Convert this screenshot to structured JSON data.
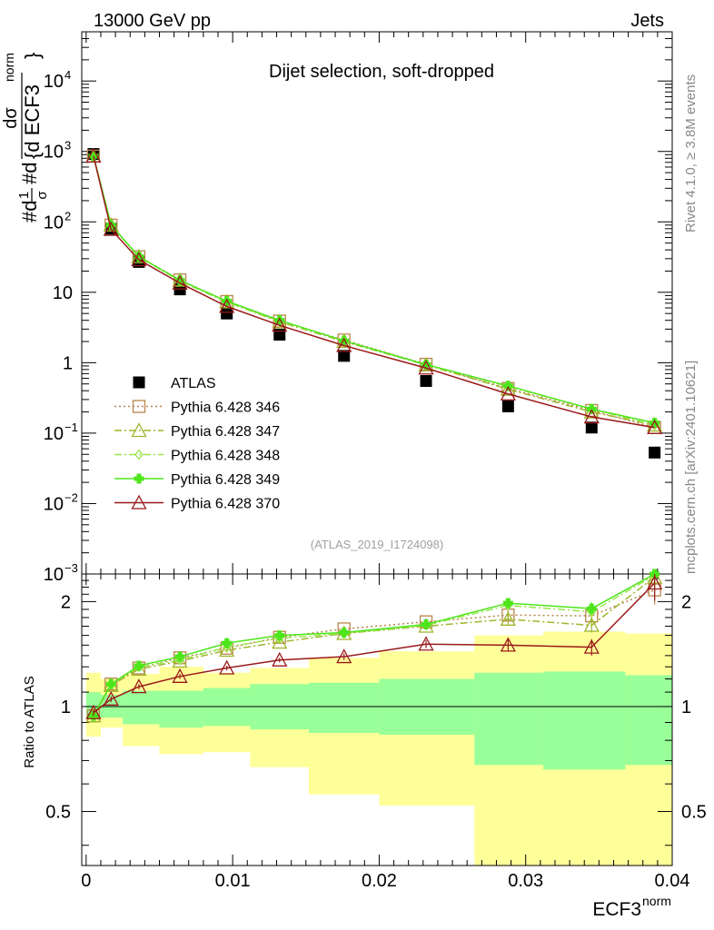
{
  "header": {
    "energy_label": "13000 GeV pp",
    "category_label": "Jets"
  },
  "side_text": {
    "rivet": "Rivet 4.1.0, ≥ 3.8M events",
    "mcplots": "mcplots.cern.ch [arXiv:2401.10621]"
  },
  "colors": {
    "atlas": "#000000",
    "p346": "#b8864b",
    "p347": "#a0b52c",
    "p348": "#99e64d",
    "p349": "#4ce61a",
    "p370": "#99191a",
    "band_yellow": "#ffff99",
    "band_green": "#99ff99"
  },
  "chart_data": [
    {
      "type": "line",
      "title": "Dijet selection, soft-dropped",
      "analysis_id": "(ATLAS_2019_I1724098)",
      "yscale": "log",
      "ylim": [
        0.001,
        50000
      ],
      "xlim": [
        -0.0003,
        0.04
      ],
      "ylabel": {
        "top": "dσ",
        "bottom": "{d ECF3",
        "sup": "norm",
        "close": "}",
        "left": "#d",
        "frac_top": "1",
        "frac_bottom": "σ",
        "mid": "#d"
      },
      "ytick_labels": [
        {
          "v": 0.001,
          "base": "10",
          "exp": "−3"
        },
        {
          "v": 0.01,
          "base": "10",
          "exp": "−2"
        },
        {
          "v": 0.1,
          "base": "10",
          "exp": "−1"
        },
        {
          "v": 1,
          "base": "1",
          "exp": ""
        },
        {
          "v": 10,
          "base": "10",
          "exp": ""
        },
        {
          "v": 100,
          "base": "10",
          "exp": "2"
        },
        {
          "v": 1000,
          "base": "10",
          "exp": "3"
        },
        {
          "v": 10000,
          "base": "10",
          "exp": "4"
        }
      ],
      "x": [
        0.0005,
        0.0017,
        0.0036,
        0.0064,
        0.0096,
        0.0132,
        0.0176,
        0.0232,
        0.0288,
        0.0345,
        0.0388
      ],
      "series": [
        {
          "name": "ATLAS",
          "marker": "square",
          "color": "#000000",
          "values": [
            920,
            80,
            27,
            11,
            5.0,
            2.5,
            1.25,
            0.55,
            0.24,
            0.12,
            0.053
          ]
        },
        {
          "name": "Pythia 6.428 346",
          "marker": "open-square",
          "dash": "dotted",
          "color": "#b8864b",
          "values": [
            860,
            90,
            32,
            15,
            7.4,
            3.9,
            2.1,
            0.95,
            0.43,
            0.21,
            0.12
          ]
        },
        {
          "name": "Pythia 6.428 347",
          "marker": "open-triangle",
          "dash": "dashdot",
          "color": "#a0b52c",
          "values": [
            860,
            90,
            32,
            14.8,
            7.3,
            3.8,
            2.0,
            0.93,
            0.42,
            0.2,
            0.13
          ]
        },
        {
          "name": "Pythia 6.428 348",
          "marker": "diamond",
          "dash": "dashdot",
          "color": "#99e64d",
          "values": [
            860,
            90,
            32,
            14.5,
            7.2,
            3.9,
            2.05,
            0.94,
            0.46,
            0.22,
            0.13
          ]
        },
        {
          "name": "Pythia 6.428 349",
          "marker": "cross",
          "dash": "solid",
          "color": "#4ce61a",
          "values": [
            860,
            90,
            32,
            14.8,
            7.5,
            4.0,
            2.05,
            0.94,
            0.47,
            0.22,
            0.14
          ]
        },
        {
          "name": "Pythia 6.428 370",
          "marker": "open-triangle",
          "dash": "solid",
          "color": "#99191a",
          "values": [
            860,
            78,
            29,
            13.5,
            6.3,
            3.4,
            1.75,
            0.84,
            0.36,
            0.17,
            0.12
          ]
        }
      ]
    },
    {
      "type": "line",
      "ylabel": "Ratio to ATLAS",
      "xlabel": "ECF3",
      "xlabel_sup": "norm",
      "yscale": "log",
      "ylim": [
        0.35,
        2.4
      ],
      "xlim": [
        -0.0003,
        0.04
      ],
      "ytick_labels": [
        {
          "v": 0.5,
          "label": "0.5"
        },
        {
          "v": 1,
          "label": "1"
        },
        {
          "v": 2,
          "label": "2"
        }
      ],
      "xtick_labels": [
        {
          "v": 0,
          "label": "0"
        },
        {
          "v": 0.01,
          "label": "0.01"
        },
        {
          "v": 0.02,
          "label": "0.02"
        },
        {
          "v": 0.03,
          "label": "0.03"
        },
        {
          "v": 0.04,
          "label": "0.04"
        }
      ],
      "bin_edges": [
        0,
        0.001,
        0.0025,
        0.005,
        0.008,
        0.0112,
        0.0152,
        0.02,
        0.0265,
        0.0312,
        0.0368,
        0.04
      ],
      "band_yellow": [
        [
          0.82,
          1.25
        ],
        [
          0.87,
          1.2
        ],
        [
          0.77,
          1.24
        ],
        [
          0.73,
          1.3
        ],
        [
          0.74,
          1.25
        ],
        [
          0.67,
          1.29
        ],
        [
          0.56,
          1.38
        ],
        [
          0.52,
          1.44
        ],
        [
          0.32,
          1.6
        ],
        [
          0.32,
          1.64
        ],
        [
          0.32,
          1.62
        ]
      ],
      "band_green": [
        [
          0.93,
          1.1
        ],
        [
          0.93,
          1.08
        ],
        [
          0.89,
          1.11
        ],
        [
          0.87,
          1.11
        ],
        [
          0.88,
          1.13
        ],
        [
          0.86,
          1.16
        ],
        [
          0.84,
          1.17
        ],
        [
          0.83,
          1.2
        ],
        [
          0.68,
          1.25
        ],
        [
          0.66,
          1.26
        ],
        [
          0.68,
          1.23
        ]
      ],
      "x": [
        0.0005,
        0.0017,
        0.0036,
        0.0064,
        0.0096,
        0.0132,
        0.0176,
        0.0232,
        0.0288,
        0.0345,
        0.0388
      ],
      "series": [
        {
          "name": "Pythia 6.428 346",
          "marker": "open-square",
          "dash": "dotted",
          "color": "#b8864b",
          "values": [
            0.94,
            1.16,
            1.29,
            1.38,
            1.47,
            1.58,
            1.67,
            1.75,
            1.83,
            1.82,
            2.16
          ],
          "err": [
            0.02,
            0.02,
            0.02,
            0.02,
            0.02,
            0.02,
            0.03,
            0.04,
            0.06,
            0.08,
            0.2
          ]
        },
        {
          "name": "Pythia 6.428 347",
          "marker": "open-triangle",
          "dash": "dashdot",
          "color": "#a0b52c",
          "values": [
            0.94,
            1.15,
            1.28,
            1.35,
            1.45,
            1.53,
            1.62,
            1.7,
            1.78,
            1.71,
            2.35
          ],
          "err": [
            0.02,
            0.02,
            0.02,
            0.02,
            0.02,
            0.02,
            0.03,
            0.04,
            0.06,
            0.08,
            0.2
          ]
        },
        {
          "name": "Pythia 6.428 348",
          "marker": "diamond",
          "dash": "dashdot",
          "color": "#99e64d",
          "values": [
            0.94,
            1.16,
            1.3,
            1.36,
            1.48,
            1.57,
            1.62,
            1.71,
            1.95,
            1.87,
            2.38
          ],
          "err": [
            0.02,
            0.02,
            0.02,
            0.02,
            0.02,
            0.02,
            0.03,
            0.04,
            0.06,
            0.08,
            0.2
          ]
        },
        {
          "name": "Pythia 6.428 349",
          "marker": "cross",
          "dash": "solid",
          "color": "#4ce61a",
          "values": [
            0.94,
            1.16,
            1.31,
            1.39,
            1.52,
            1.6,
            1.63,
            1.72,
            1.98,
            1.91,
            2.42
          ],
          "err": [
            0.02,
            0.02,
            0.02,
            0.02,
            0.02,
            0.02,
            0.03,
            0.04,
            0.06,
            0.08,
            0.2
          ]
        },
        {
          "name": "Pythia 6.428 370",
          "marker": "open-triangle",
          "dash": "solid",
          "color": "#99191a",
          "values": [
            0.96,
            1.05,
            1.14,
            1.22,
            1.29,
            1.36,
            1.39,
            1.51,
            1.5,
            1.48,
            2.26
          ],
          "err": [
            0.02,
            0.02,
            0.02,
            0.02,
            0.02,
            0.02,
            0.03,
            0.04,
            0.06,
            0.08,
            0.25
          ]
        }
      ]
    }
  ]
}
